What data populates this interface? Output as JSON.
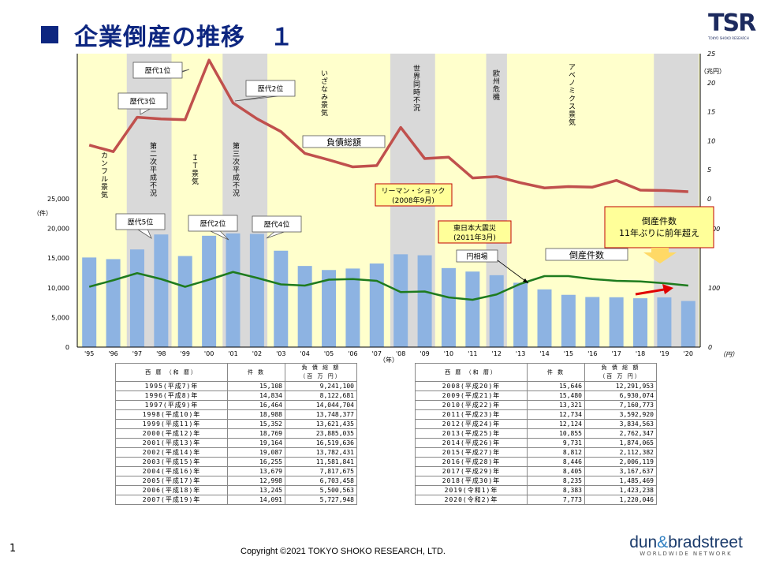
{
  "title": "企業倒産の推移　１",
  "logo": {
    "text": "TSR",
    "sub": "TOKYO SHOKO RESEARCH"
  },
  "page_number": "1",
  "copyright": "Copyright ©2021 TOKYO SHOKO RESEARCH, LTD.",
  "dnb": {
    "name_left": "dun",
    "amp": "&",
    "name_right": "bradstreet",
    "tagline": "WORLDWIDE NETWORK"
  },
  "colors": {
    "bar": "#8db3e2",
    "debt_line": "#c0504d",
    "count_line": "#1e7b1e",
    "background": "#ffffcc",
    "recession": "#d9d9d9",
    "title": "#0d2680"
  },
  "chart_data": {
    "type": "bar",
    "categories": [
      "'95",
      "'96",
      "'97",
      "'98",
      "'99",
      "'00",
      "'01",
      "'02",
      "'03",
      "'04",
      "'05",
      "'06",
      "'07",
      "'08",
      "'09",
      "'10",
      "'11",
      "'12",
      "'13",
      "'14",
      "'15",
      "'16",
      "'17",
      "'18",
      "'19",
      "'20"
    ],
    "x_unit": "（年）",
    "bar_series": {
      "name": "倒産件数",
      "values": [
        15108,
        14834,
        16464,
        18988,
        15352,
        18769,
        19164,
        19087,
        16255,
        13679,
        12998,
        13245,
        14091,
        15646,
        15480,
        13321,
        12734,
        12124,
        10855,
        9731,
        8812,
        8446,
        8405,
        8235,
        8383,
        7773
      ]
    },
    "debt_series": {
      "name": "負債総額",
      "unit": "（兆円）",
      "values": [
        9.24,
        8.12,
        14.04,
        13.75,
        13.62,
        23.88,
        16.52,
        13.78,
        11.58,
        7.82,
        6.7,
        5.5,
        5.73,
        12.29,
        6.93,
        7.16,
        3.59,
        3.83,
        2.76,
        1.87,
        2.11,
        2.01,
        3.17,
        1.49,
        1.42,
        1.22
      ]
    },
    "count_ratio_line": {
      "name": "円相場",
      "values": [
        102,
        113,
        125,
        115,
        102,
        114,
        127,
        117,
        106,
        104,
        114,
        115,
        112,
        93,
        94,
        84,
        80,
        89,
        107,
        120,
        120,
        115,
        112,
        111,
        108,
        104
      ]
    },
    "left_axis": {
      "unit": "（件）",
      "ticks": [
        "0",
        "5,000",
        "10,000",
        "15,000",
        "20,000",
        "25,000"
      ],
      "ylim": [
        0,
        25000
      ]
    },
    "right_top_axis": {
      "unit": "（兆円）",
      "ticks": [
        "0",
        "5",
        "10",
        "15",
        "20",
        "25"
      ],
      "ylim": [
        0,
        25
      ]
    },
    "right_bottom_axis": {
      "unit": "（円）",
      "ticks": [
        "0",
        "100",
        "200"
      ],
      "ylim": [
        0,
        200
      ]
    },
    "recession_periods": [
      "'97–'98",
      "'01–'02",
      "'08–'09",
      "'12",
      "'19–'20"
    ],
    "era_labels": [
      "カンフル景気",
      "第二次平成不況",
      "ＩＴ景気",
      "第三次平成不況",
      "いざなみ景気",
      "世界同時不況",
      "欧州危機",
      "アベノミクス景気"
    ],
    "rank_callouts": [
      "歴代1位",
      "歴代3位",
      "歴代2位",
      "歴代5位",
      "歴代2位",
      "歴代4位"
    ],
    "annotations": {
      "debt_label": "負債総額",
      "count_label": "倒産件数",
      "lehman": [
        "リーマン・ショック",
        "(2008年9月)"
      ],
      "earthquake": [
        "東日本大震災",
        "(2011年3月)"
      ],
      "yen_label": "円相場",
      "highlight": [
        "倒産件数",
        "11年ぶりに前年超え"
      ]
    }
  },
  "table_headers": [
    "西 暦 （和 暦）",
    "件 数",
    "負 債 総 額",
    "（百 万 円）"
  ],
  "table_left": [
    [
      "1995(平成7)年",
      "15,108",
      "9,241,100"
    ],
    [
      "1996(平成8)年",
      "14,834",
      "8,122,681"
    ],
    [
      "1997(平成9)年",
      "16,464",
      "14,044,704"
    ],
    [
      "1998(平成10)年",
      "18,988",
      "13,748,377"
    ],
    [
      "1999(平成11)年",
      "15,352",
      "13,621,435"
    ],
    [
      "2000(平成12)年",
      "18,769",
      "23,885,035"
    ],
    [
      "2001(平成13)年",
      "19,164",
      "16,519,636"
    ],
    [
      "2002(平成14)年",
      "19,087",
      "13,782,431"
    ],
    [
      "2003(平成15)年",
      "16,255",
      "11,581,841"
    ],
    [
      "2004(平成16)年",
      "13,679",
      "7,817,675"
    ],
    [
      "2005(平成17)年",
      "12,998",
      "6,703,458"
    ],
    [
      "2006(平成18)年",
      "13,245",
      "5,500,563"
    ],
    [
      "2007(平成19)年",
      "14,091",
      "5,727,948"
    ]
  ],
  "table_right": [
    [
      "2008(平成20)年",
      "15,646",
      "12,291,953"
    ],
    [
      "2009(平成21)年",
      "15,480",
      "6,930,074"
    ],
    [
      "2010(平成22)年",
      "13,321",
      "7,160,773"
    ],
    [
      "2011(平成23)年",
      "12,734",
      "3,592,920"
    ],
    [
      "2012(平成24)年",
      "12,124",
      "3,834,563"
    ],
    [
      "2013(平成25)年",
      "10,855",
      "2,762,347"
    ],
    [
      "2014(平成26)年",
      "9,731",
      "1,874,065"
    ],
    [
      "2015(平成27)年",
      "8,812",
      "2,112,382"
    ],
    [
      "2016(平成28)年",
      "8,446",
      "2,006,119"
    ],
    [
      "2017(平成29)年",
      "8,405",
      "3,167,637"
    ],
    [
      "2018(平成30)年",
      "8,235",
      "1,485,469"
    ],
    [
      "2019(令和1)年",
      "8,383",
      "1,423,238"
    ],
    [
      "2020(令和2)年",
      "7,773",
      "1,220,046"
    ]
  ]
}
